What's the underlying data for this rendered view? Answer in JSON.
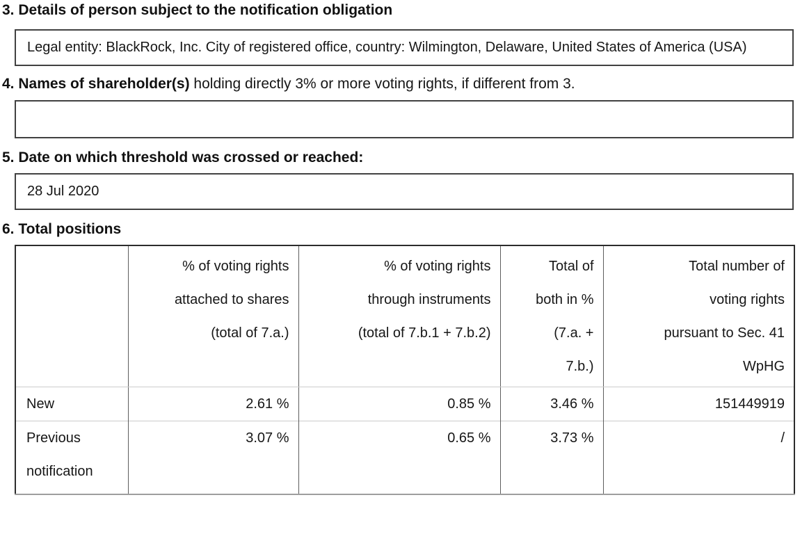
{
  "page": {
    "background": "#ffffff",
    "text_color": "#161616",
    "box_border_color": "#414141",
    "table_outer_border_color": "#2c2c2c",
    "table_vertical_border_color": "#5d5d5d",
    "table_row_separator_color": "#cbcbcb"
  },
  "sections": [
    {
      "number": "3",
      "heading_bold": "3. Details of person subject to the notification obligation",
      "heading_rest": "",
      "box_text": "Legal entity: BlackRock, Inc. City of registered office, country: Wilmington, Delaware, United States of America (USA)"
    },
    {
      "number": "4",
      "heading_bold": "4. Names of shareholder(s)",
      "heading_rest": " holding directly 3% or more voting rights, if different from 3.",
      "box_text": ""
    },
    {
      "number": "5",
      "heading_bold": "5. Date on which threshold was crossed or reached:",
      "heading_rest": "",
      "box_text": "28 Jul 2020"
    }
  ],
  "total_positions": {
    "heading": "6. Total positions",
    "columns": [
      "",
      "% of voting rights\nattached to shares\n(total of 7.a.)",
      "% of voting rights\nthrough instruments\n(total of 7.b.1 + 7.b.2)",
      "Total of\nboth in %\n(7.a. +\n7.b.)",
      "Total number of\nvoting rights\npursuant to Sec. 41\nWpHG"
    ],
    "rows": [
      {
        "label": "New",
        "voting_rights_shares": "2.61 %",
        "voting_rights_instruments": "0.85 %",
        "total_both": "3.46 %",
        "total_number": "151449919"
      },
      {
        "label": "Previous notification",
        "voting_rights_shares": "3.07 %",
        "voting_rights_instruments": "0.65 %",
        "total_both": "3.73 %",
        "total_number": "/"
      }
    ]
  }
}
